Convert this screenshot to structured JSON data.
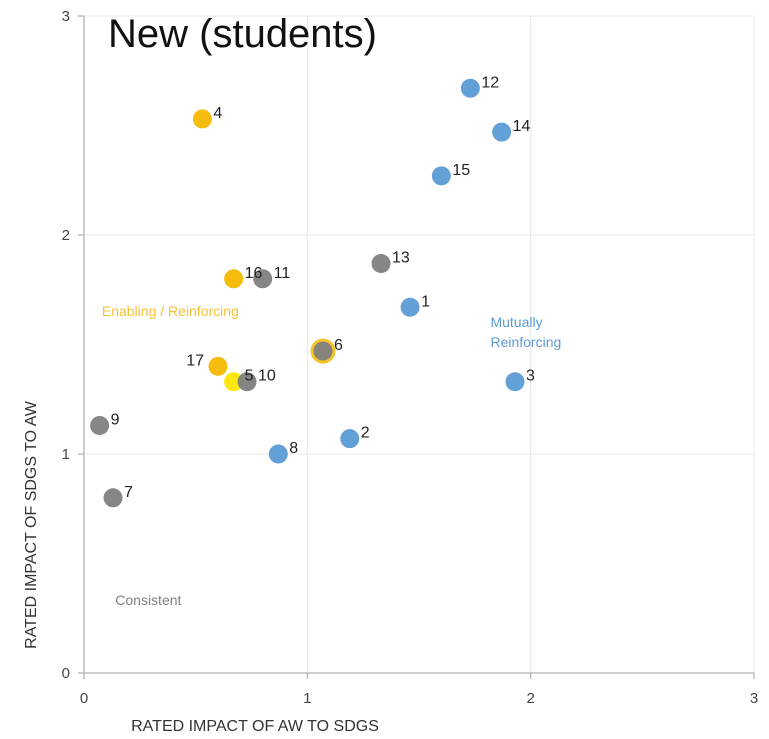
{
  "chart_data": {
    "type": "scatter",
    "title": "New (students)",
    "xlabel": "RATED IMPACT OF AW TO SDGS",
    "ylabel": "RATED IMPACT OF SDGS TO AW",
    "xlim": [
      0,
      3
    ],
    "ylim": [
      0,
      3
    ],
    "xticks": [
      "0",
      "1",
      "2",
      "3"
    ],
    "yticks": [
      "0",
      "1",
      "2",
      "3"
    ],
    "grid": true,
    "colors": {
      "blue": "#5b9bd5",
      "orange": "#f5b800",
      "gray": "#7f7f7f",
      "yellow": "#ffe600"
    },
    "region_labels": [
      {
        "text": "Enabling / Reinforcing",
        "x": 0.08,
        "y": 1.63,
        "color": "#f5c236",
        "lines": [
          "Enabling / Reinforcing"
        ]
      },
      {
        "text": "Mutually Reinforcing",
        "x": 1.82,
        "y": 1.58,
        "color": "#5b9bd5",
        "lines": [
          "Mutually",
          "Reinforcing"
        ]
      },
      {
        "text": "Consistent",
        "x": 0.14,
        "y": 0.31,
        "color": "#808080",
        "lines": [
          "Consistent"
        ]
      }
    ],
    "points": [
      {
        "label": "1",
        "x": 1.46,
        "y": 1.67,
        "color": "blue"
      },
      {
        "label": "2",
        "x": 1.19,
        "y": 1.07,
        "color": "blue"
      },
      {
        "label": "3",
        "x": 1.93,
        "y": 1.33,
        "color": "blue"
      },
      {
        "label": "4",
        "x": 0.53,
        "y": 2.53,
        "color": "orange"
      },
      {
        "label": "5",
        "x": 0.67,
        "y": 1.33,
        "color": "yellow"
      },
      {
        "label": "6",
        "x": 1.07,
        "y": 1.47,
        "color": "gray",
        "ring": "orange"
      },
      {
        "label": "7",
        "x": 0.13,
        "y": 0.8,
        "color": "gray"
      },
      {
        "label": "8",
        "x": 0.87,
        "y": 1.0,
        "color": "blue"
      },
      {
        "label": "9",
        "x": 0.07,
        "y": 1.13,
        "color": "gray"
      },
      {
        "label": "10",
        "x": 0.73,
        "y": 1.33,
        "color": "gray"
      },
      {
        "label": "11",
        "x": 0.8,
        "y": 1.8,
        "color": "gray"
      },
      {
        "label": "12",
        "x": 1.73,
        "y": 2.67,
        "color": "blue"
      },
      {
        "label": "13",
        "x": 1.33,
        "y": 1.87,
        "color": "gray"
      },
      {
        "label": "14",
        "x": 1.87,
        "y": 2.47,
        "color": "blue"
      },
      {
        "label": "15",
        "x": 1.6,
        "y": 2.27,
        "color": "blue"
      },
      {
        "label": "16",
        "x": 0.67,
        "y": 1.8,
        "color": "orange"
      },
      {
        "label": "17",
        "x": 0.6,
        "y": 1.4,
        "color": "orange"
      }
    ]
  }
}
